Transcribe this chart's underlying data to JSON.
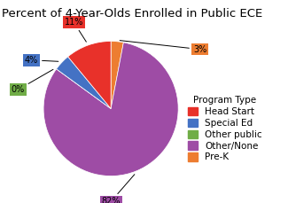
{
  "title": "Percent of 4-Year-Olds Enrolled in Public ECE",
  "labels": [
    "Pre-K",
    "Other/None",
    "Other public",
    "Special Ed",
    "Head Start"
  ],
  "values": [
    3,
    82,
    0,
    4,
    11
  ],
  "colors": [
    "#ed7d31",
    "#9e4ca5",
    "#70ad47",
    "#4472c4",
    "#e8312a"
  ],
  "legend_labels": [
    "Head Start",
    "Special Ed",
    "Other public",
    "Other/None",
    "Pre-K"
  ],
  "legend_colors": [
    "#e8312a",
    "#4472c4",
    "#70ad47",
    "#9e4ca5",
    "#ed7d31"
  ],
  "legend_title": "Program Type",
  "pct_labels": [
    "3%",
    "82%",
    "0%",
    "4%",
    "11%"
  ],
  "startangle": 90,
  "counterclock": false,
  "title_fontsize": 9.5,
  "legend_fontsize": 7.5,
  "pct_fontsize": 7
}
